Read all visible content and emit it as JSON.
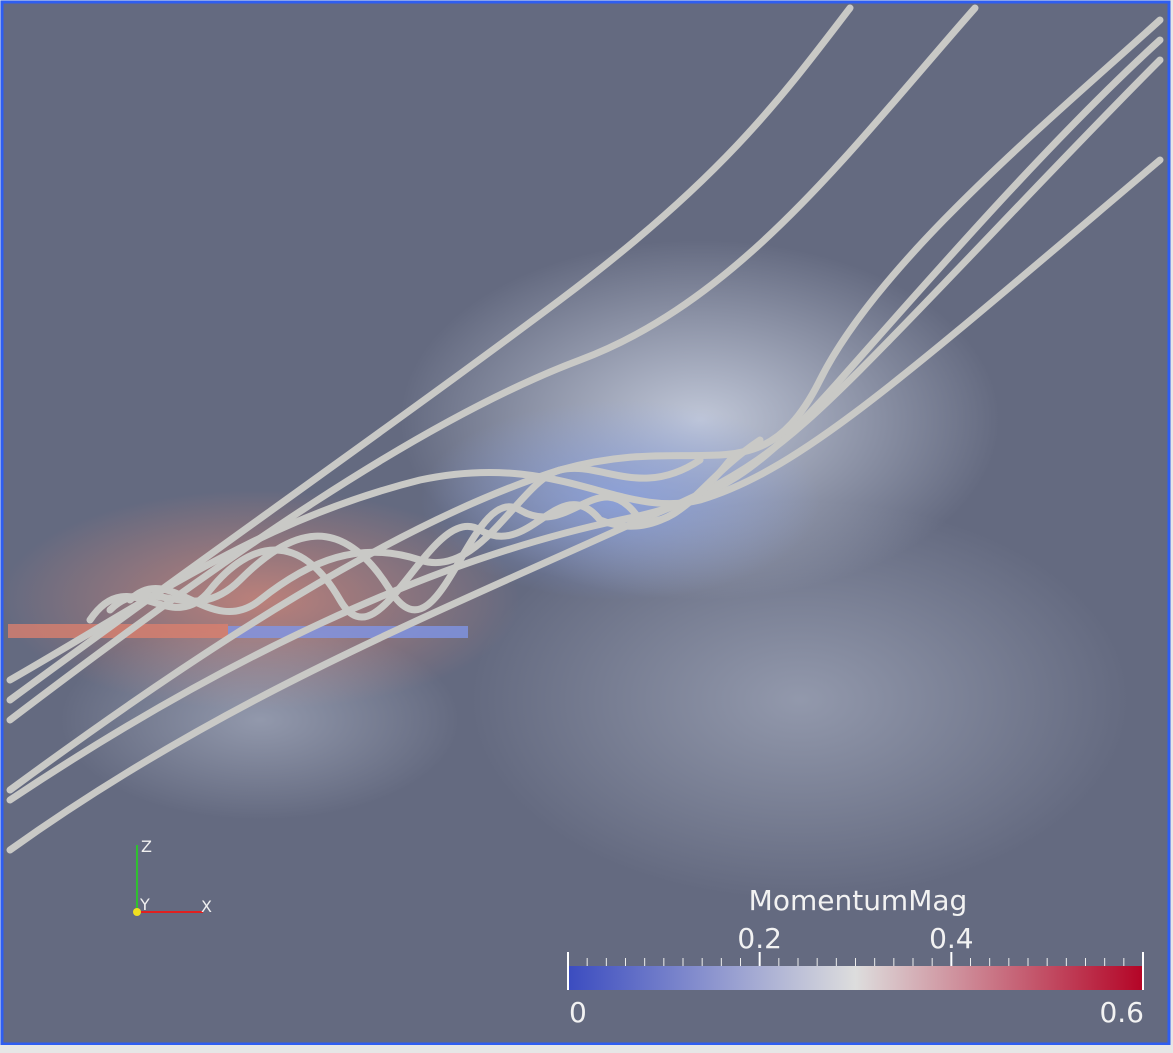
{
  "view": {
    "axes": {
      "z": "Z",
      "y": "Y",
      "x": "X"
    },
    "color_legend": {
      "title": "MomentumMag",
      "min": 0,
      "max": 0.6,
      "ticks": [
        0.2,
        0.4
      ],
      "colormap": [
        "#3b4cc0",
        "#dddddd",
        "#b40426"
      ]
    }
  }
}
